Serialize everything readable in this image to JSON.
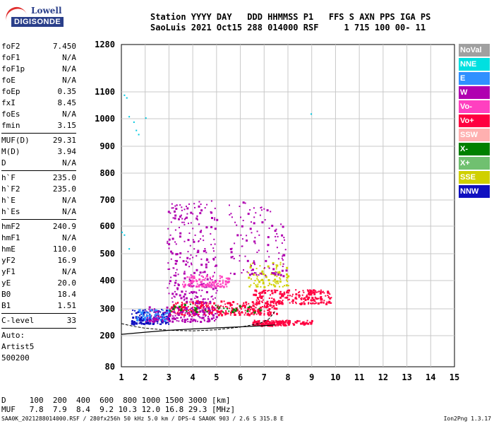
{
  "logo": {
    "line1": "Lowell",
    "line2": "DIGISONDE"
  },
  "header": {
    "line1": "Station YYYY DAY   DDD HHMMSS P1   FFS S AXN PPS IGA PS",
    "line2": "SaoLuis 2021 Oct15 288 014000 RSF     1 715 100 00- 11"
  },
  "params": {
    "group1": [
      {
        "name": "foF2",
        "value": "7.450"
      },
      {
        "name": "foF1",
        "value": "N/A"
      },
      {
        "name": "foF1p",
        "value": "N/A"
      },
      {
        "name": "foE",
        "value": "N/A"
      },
      {
        "name": "foEp",
        "value": "0.35"
      },
      {
        "name": "fxI",
        "value": "8.45"
      },
      {
        "name": "foEs",
        "value": "N/A"
      },
      {
        "name": "fmin",
        "value": "3.15"
      }
    ],
    "group2": [
      {
        "name": "MUF(D)",
        "value": "29.31"
      },
      {
        "name": "M(D)",
        "value": "3.94"
      },
      {
        "name": "D",
        "value": "N/A"
      }
    ],
    "group3": [
      {
        "name": "h`F",
        "value": "235.0"
      },
      {
        "name": "h`F2",
        "value": "235.0"
      },
      {
        "name": "h`E",
        "value": "N/A"
      },
      {
        "name": "h`Es",
        "value": "N/A"
      }
    ],
    "group4": [
      {
        "name": "hmF2",
        "value": "240.9"
      },
      {
        "name": "hmF1",
        "value": "N/A"
      },
      {
        "name": "hmE",
        "value": "110.0"
      },
      {
        "name": "yF2",
        "value": "16.9"
      },
      {
        "name": "yF1",
        "value": "N/A"
      },
      {
        "name": "yE",
        "value": "20.0"
      },
      {
        "name": "B0",
        "value": "18.4"
      },
      {
        "name": "B1",
        "value": "1.51"
      }
    ],
    "clevel": {
      "name": "C-level",
      "value": "33"
    },
    "auto": [
      "Auto:",
      "Artist5",
      "500200"
    ]
  },
  "legend": [
    {
      "label": "NoVal",
      "color": "#a0a0a0"
    },
    {
      "label": "NNE",
      "color": "#00e0e0"
    },
    {
      "label": "E",
      "color": "#3090ff"
    },
    {
      "label": "W",
      "color": "#b000b0"
    },
    {
      "label": "Vo-",
      "color": "#ff40c0"
    },
    {
      "label": "Vo+",
      "color": "#ff0040"
    },
    {
      "label": "SSW",
      "color": "#ffb0b0"
    },
    {
      "label": "X-",
      "color": "#008000"
    },
    {
      "label": "X+",
      "color": "#70c070"
    },
    {
      "label": "SSE",
      "color": "#d0d000"
    },
    {
      "label": "NNW",
      "color": "#1010c0"
    }
  ],
  "dmuf": {
    "line1": "D     100  200  400  600  800 1000 1500 3000 [km]",
    "line2": "MUF   7.8  7.9  8.4  9.2 10.3 12.0 16.8 29.3 [MHz]"
  },
  "footer": "SAA0K_2021288014000.RSF / 280fx256h 50 kHz 5.0 km / DPS-4 SAA0K 903 / 2.6 S 315.8 E",
  "version": "Ion2Png 1.3.17",
  "chart_data": {
    "type": "scatter",
    "x_ticks": [
      "1",
      "2",
      "3",
      "4",
      "5",
      "6",
      "7",
      "8",
      "9",
      "10",
      "11",
      "12",
      "13",
      "14",
      "15"
    ],
    "y_ticks": [
      "80",
      "200",
      "300",
      "400",
      "500",
      "600",
      "700",
      "800",
      "900",
      "1000",
      "1100",
      "1280"
    ],
    "xlim": [
      1,
      15
    ],
    "ylim": [
      80,
      1280
    ],
    "grid": true,
    "ordinary_trace": [
      [
        1.0,
        245
      ],
      [
        1.5,
        235
      ],
      [
        2.0,
        228
      ],
      [
        3.0,
        220
      ],
      [
        4.0,
        218
      ],
      [
        5.0,
        222
      ],
      [
        6.0,
        232
      ],
      [
        6.8,
        245
      ],
      [
        7.2,
        262
      ],
      [
        7.45,
        290
      ]
    ],
    "profile_curve": [
      [
        1.0,
        205
      ],
      [
        2.0,
        213
      ],
      [
        3.0,
        220
      ],
      [
        4.0,
        225
      ],
      [
        5.0,
        229
      ],
      [
        6.0,
        233
      ],
      [
        7.0,
        237
      ],
      [
        7.45,
        240
      ]
    ],
    "clusters": [
      {
        "color": "#1010c0",
        "x": [
          1.4,
          3.0
        ],
        "y": [
          245,
          300
        ],
        "n": 160
      },
      {
        "color": "#ff0040",
        "x": [
          3.0,
          7.5
        ],
        "y": [
          280,
          330
        ],
        "n": 320
      },
      {
        "color": "#b000b0",
        "x": [
          2.0,
          5.0
        ],
        "y": [
          255,
          310
        ],
        "n": 180
      },
      {
        "color": "#ff0040",
        "x": [
          6.5,
          9.8
        ],
        "y": [
          320,
          370
        ],
        "n": 220
      },
      {
        "color": "#b000b0",
        "x": [
          2.9,
          5.0
        ],
        "y": [
          320,
          700
        ],
        "n": 260
      },
      {
        "color": "#ff40c0",
        "x": [
          3.5,
          5.5
        ],
        "y": [
          380,
          420
        ],
        "n": 110
      },
      {
        "color": "#d0d000",
        "x": [
          6.3,
          8.0
        ],
        "y": [
          380,
          470
        ],
        "n": 90
      },
      {
        "color": "#ff0040",
        "x": [
          6.5,
          8.0
        ],
        "y": [
          240,
          260
        ],
        "n": 120
      },
      {
        "color": "#b000b0",
        "x": [
          5.5,
          7.9
        ],
        "y": [
          420,
          700
        ],
        "n": 120
      },
      {
        "color": "#3090ff",
        "x": [
          1.6,
          3.0
        ],
        "y": [
          260,
          300
        ],
        "n": 50
      },
      {
        "color": "#008000",
        "x": [
          3.0,
          7.0
        ],
        "y": [
          290,
          320
        ],
        "n": 40
      },
      {
        "color": "#ff0040",
        "x": [
          7.0,
          9.0
        ],
        "y": [
          245,
          260
        ],
        "n": 60
      }
    ],
    "outliers": [
      [
        1.1,
        1090
      ],
      [
        1.2,
        1080
      ],
      [
        1.3,
        1010
      ],
      [
        1.5,
        990
      ],
      [
        1.6,
        960
      ],
      [
        1.7,
        945
      ],
      [
        2.0,
        1005
      ],
      [
        8.95,
        1020
      ],
      [
        1.0,
        580
      ],
      [
        1.1,
        570
      ],
      [
        1.3,
        520
      ]
    ]
  }
}
